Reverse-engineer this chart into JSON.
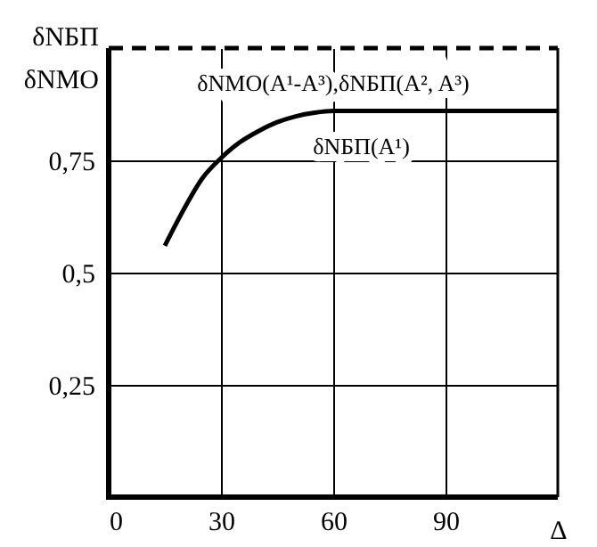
{
  "chart_data": {
    "type": "line",
    "xlabel": "Δ",
    "ylabel": "δNБП\nδNМО",
    "xlim": [
      0,
      120
    ],
    "ylim": [
      0,
      1
    ],
    "xticks": [
      0,
      30,
      60,
      90
    ],
    "yticks": [
      {
        "value": 0.25,
        "label": "0,25"
      },
      {
        "value": 0.5,
        "label": "0,5"
      },
      {
        "value": 0.75,
        "label": "0,75"
      }
    ],
    "grid": true,
    "series": [
      {
        "name": "δNМО(A¹-A³),δNБП(A², A³)",
        "color": "#000000",
        "line_style": "dashed",
        "x": [
          0,
          120
        ],
        "values": [
          1,
          1
        ]
      },
      {
        "name": "δNБП(A¹)",
        "color": "#000000",
        "line_style": "solid",
        "x": [
          15,
          20,
          25,
          30,
          35,
          40,
          45,
          50,
          55,
          60,
          120
        ],
        "values": [
          0.56,
          0.64,
          0.71,
          0.755,
          0.79,
          0.815,
          0.835,
          0.848,
          0.856,
          0.86,
          0.86
        ]
      }
    ]
  }
}
